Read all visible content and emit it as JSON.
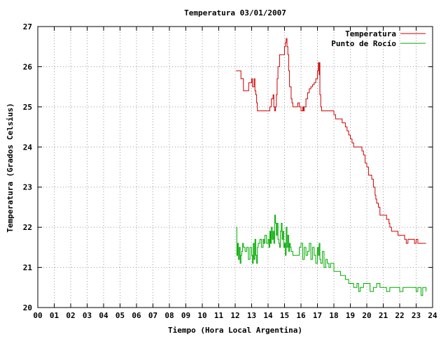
{
  "chart_data": {
    "type": "line",
    "title": "Temperatura 03/01/2007",
    "xlabel": "Tiempo (Hora Local Argentina)",
    "ylabel": "Temperatura (Grados Celsius)",
    "xlim": [
      0,
      24
    ],
    "ylim": [
      20,
      27
    ],
    "grid": true,
    "legend_position": "top-right",
    "x_tick_labels": [
      "00",
      "01",
      "02",
      "03",
      "04",
      "05",
      "06",
      "07",
      "08",
      "09",
      "10",
      "11",
      "12",
      "13",
      "14",
      "15",
      "16",
      "17",
      "18",
      "19",
      "20",
      "21",
      "22",
      "23",
      "24"
    ],
    "y_tick_labels": [
      "20",
      "21",
      "22",
      "23",
      "24",
      "25",
      "26",
      "27"
    ],
    "colors": {
      "temperatura": "#cc0000",
      "punto_de_rocio": "#00aa00",
      "grid": "#9a9a9a",
      "axis": "#000000"
    },
    "series": [
      {
        "name": "Temperatura",
        "x": [
          12.05,
          12.3,
          12.35,
          12.5,
          12.8,
          12.82,
          12.95,
          13.0,
          13.05,
          13.15,
          13.2,
          13.25,
          13.3,
          13.35,
          13.4,
          13.45,
          13.5,
          13.55,
          13.6,
          13.7,
          13.75,
          13.8,
          14.0,
          14.1,
          14.2,
          14.3,
          14.35,
          14.4,
          14.45,
          14.5,
          14.55,
          14.6,
          14.7,
          14.75,
          14.8,
          14.9,
          15.0,
          15.05,
          15.1,
          15.15,
          15.2,
          15.25,
          15.3,
          15.4,
          15.45,
          15.5,
          15.55,
          15.6,
          15.7,
          15.8,
          15.9,
          16.0,
          16.05,
          16.1,
          16.15,
          16.2,
          16.3,
          16.4,
          16.5,
          16.6,
          16.7,
          16.8,
          16.9,
          17.0,
          17.05,
          17.1,
          17.12,
          17.15,
          17.2,
          17.25,
          17.3,
          17.35,
          17.4,
          17.5,
          17.55,
          17.6,
          17.7,
          17.8,
          17.9,
          18.0,
          18.1,
          18.2,
          18.3,
          18.4,
          18.5,
          18.6,
          18.7,
          18.8,
          18.9,
          19.0,
          19.1,
          19.2,
          19.3,
          19.4,
          19.5,
          19.6,
          19.7,
          19.8,
          19.9,
          20.0,
          20.1,
          20.2,
          20.3,
          20.4,
          20.5,
          20.55,
          20.6,
          20.7,
          20.8,
          20.9,
          21.0,
          21.1,
          21.2,
          21.3,
          21.35,
          21.4,
          21.5,
          21.6,
          21.7,
          21.8,
          21.85,
          21.9,
          22.0,
          22.1,
          22.2,
          22.3,
          22.4,
          22.5,
          22.6,
          22.7,
          22.8,
          22.9,
          23.0,
          23.1,
          23.2,
          23.25,
          23.3,
          23.35,
          23.4,
          23.5,
          23.55,
          23.6
        ],
        "y": [
          25.9,
          25.9,
          25.7,
          25.4,
          25.4,
          25.6,
          25.6,
          25.7,
          25.5,
          25.7,
          25.4,
          25.3,
          25.1,
          24.9,
          24.9,
          24.9,
          24.9,
          24.9,
          24.9,
          24.9,
          24.9,
          24.9,
          24.9,
          25.0,
          25.2,
          25.3,
          25.0,
          24.9,
          25.0,
          25.3,
          25.7,
          26.0,
          26.3,
          26.3,
          26.3,
          26.3,
          26.5,
          26.6,
          26.7,
          26.5,
          26.3,
          25.9,
          25.5,
          25.2,
          25.1,
          25.0,
          25.0,
          25.0,
          25.0,
          25.1,
          25.0,
          24.9,
          24.9,
          25.0,
          24.9,
          25.0,
          25.2,
          25.35,
          25.45,
          25.5,
          25.55,
          25.6,
          25.7,
          25.9,
          26.1,
          25.8,
          26.1,
          25.3,
          25.0,
          24.9,
          24.9,
          24.9,
          24.9,
          24.9,
          24.9,
          24.9,
          24.9,
          24.9,
          24.9,
          24.8,
          24.7,
          24.7,
          24.7,
          24.7,
          24.6,
          24.6,
          24.5,
          24.4,
          24.3,
          24.2,
          24.1,
          24.0,
          24.0,
          24.0,
          24.0,
          24.0,
          23.9,
          23.8,
          23.6,
          23.5,
          23.3,
          23.3,
          23.2,
          23.0,
          22.8,
          22.7,
          22.6,
          22.5,
          22.3,
          22.3,
          22.3,
          22.3,
          22.2,
          22.2,
          22.1,
          22.0,
          21.9,
          21.9,
          21.9,
          21.9,
          21.9,
          21.8,
          21.8,
          21.8,
          21.8,
          21.7,
          21.6,
          21.7,
          21.7,
          21.7,
          21.7,
          21.6,
          21.7,
          21.6,
          21.6,
          21.6,
          21.6,
          21.6,
          21.6,
          21.6,
          21.6,
          21.6
        ]
      },
      {
        "name": "Punto de Rocío",
        "x": [
          12.05,
          12.1,
          12.15,
          12.2,
          12.25,
          12.3,
          12.35,
          12.4,
          12.45,
          12.5,
          12.6,
          12.7,
          12.8,
          12.9,
          13.0,
          13.05,
          13.1,
          13.15,
          13.2,
          13.25,
          13.3,
          13.35,
          13.4,
          13.5,
          13.6,
          13.7,
          13.75,
          13.8,
          13.9,
          14.0,
          14.05,
          14.1,
          14.15,
          14.2,
          14.25,
          14.3,
          14.35,
          14.4,
          14.45,
          14.5,
          14.55,
          14.6,
          14.65,
          14.7,
          14.75,
          14.8,
          14.85,
          14.9,
          14.95,
          15.0,
          15.05,
          15.1,
          15.15,
          15.2,
          15.25,
          15.3,
          15.35,
          15.4,
          15.5,
          15.6,
          15.7,
          15.8,
          15.9,
          16.0,
          16.1,
          16.2,
          16.3,
          16.4,
          16.5,
          16.6,
          16.7,
          16.8,
          16.9,
          17.0,
          17.05,
          17.1,
          17.15,
          17.2,
          17.3,
          17.4,
          17.5,
          17.6,
          17.7,
          17.8,
          17.9,
          18.0,
          18.1,
          18.2,
          18.3,
          18.4,
          18.5,
          18.6,
          18.7,
          18.8,
          18.9,
          19.0,
          19.1,
          19.2,
          19.3,
          19.4,
          19.5,
          19.6,
          19.7,
          19.8,
          19.9,
          20.0,
          20.2,
          20.4,
          20.6,
          20.8,
          21.0,
          21.2,
          21.4,
          21.6,
          21.8,
          22.0,
          22.2,
          22.4,
          22.6,
          22.8,
          23.0,
          23.1,
          23.2,
          23.3,
          23.4,
          23.5,
          23.6
        ],
        "y": [
          22.0,
          21.3,
          21.6,
          21.2,
          21.5,
          21.1,
          21.3,
          21.4,
          21.6,
          21.5,
          21.4,
          21.5,
          21.2,
          21.5,
          21.3,
          21.1,
          21.6,
          21.2,
          21.7,
          21.3,
          21.1,
          21.5,
          21.6,
          21.7,
          21.5,
          21.7,
          21.6,
          21.8,
          21.6,
          21.7,
          21.5,
          21.9,
          21.6,
          22.0,
          21.7,
          21.9,
          21.6,
          22.3,
          22.1,
          21.8,
          22.1,
          21.7,
          21.6,
          21.5,
          21.9,
          22.1,
          21.7,
          21.9,
          21.5,
          21.6,
          21.3,
          22.0,
          21.5,
          21.8,
          21.4,
          21.6,
          21.5,
          21.4,
          21.3,
          21.3,
          21.3,
          21.3,
          21.5,
          21.6,
          21.2,
          21.5,
          21.3,
          21.4,
          21.6,
          21.2,
          21.5,
          21.3,
          21.1,
          21.5,
          21.3,
          21.6,
          21.2,
          21.1,
          21.4,
          21.0,
          21.2,
          21.1,
          21.0,
          21.1,
          21.1,
          20.9,
          20.9,
          20.9,
          20.9,
          20.8,
          20.8,
          20.8,
          20.7,
          20.7,
          20.6,
          20.6,
          20.6,
          20.5,
          20.5,
          20.6,
          20.4,
          20.5,
          20.5,
          20.6,
          20.6,
          20.6,
          20.4,
          20.5,
          20.6,
          20.5,
          20.5,
          20.4,
          20.5,
          20.5,
          20.5,
          20.4,
          20.5,
          20.5,
          20.5,
          20.5,
          20.4,
          20.5,
          20.5,
          20.3,
          20.5,
          20.5,
          20.4
        ]
      }
    ]
  }
}
